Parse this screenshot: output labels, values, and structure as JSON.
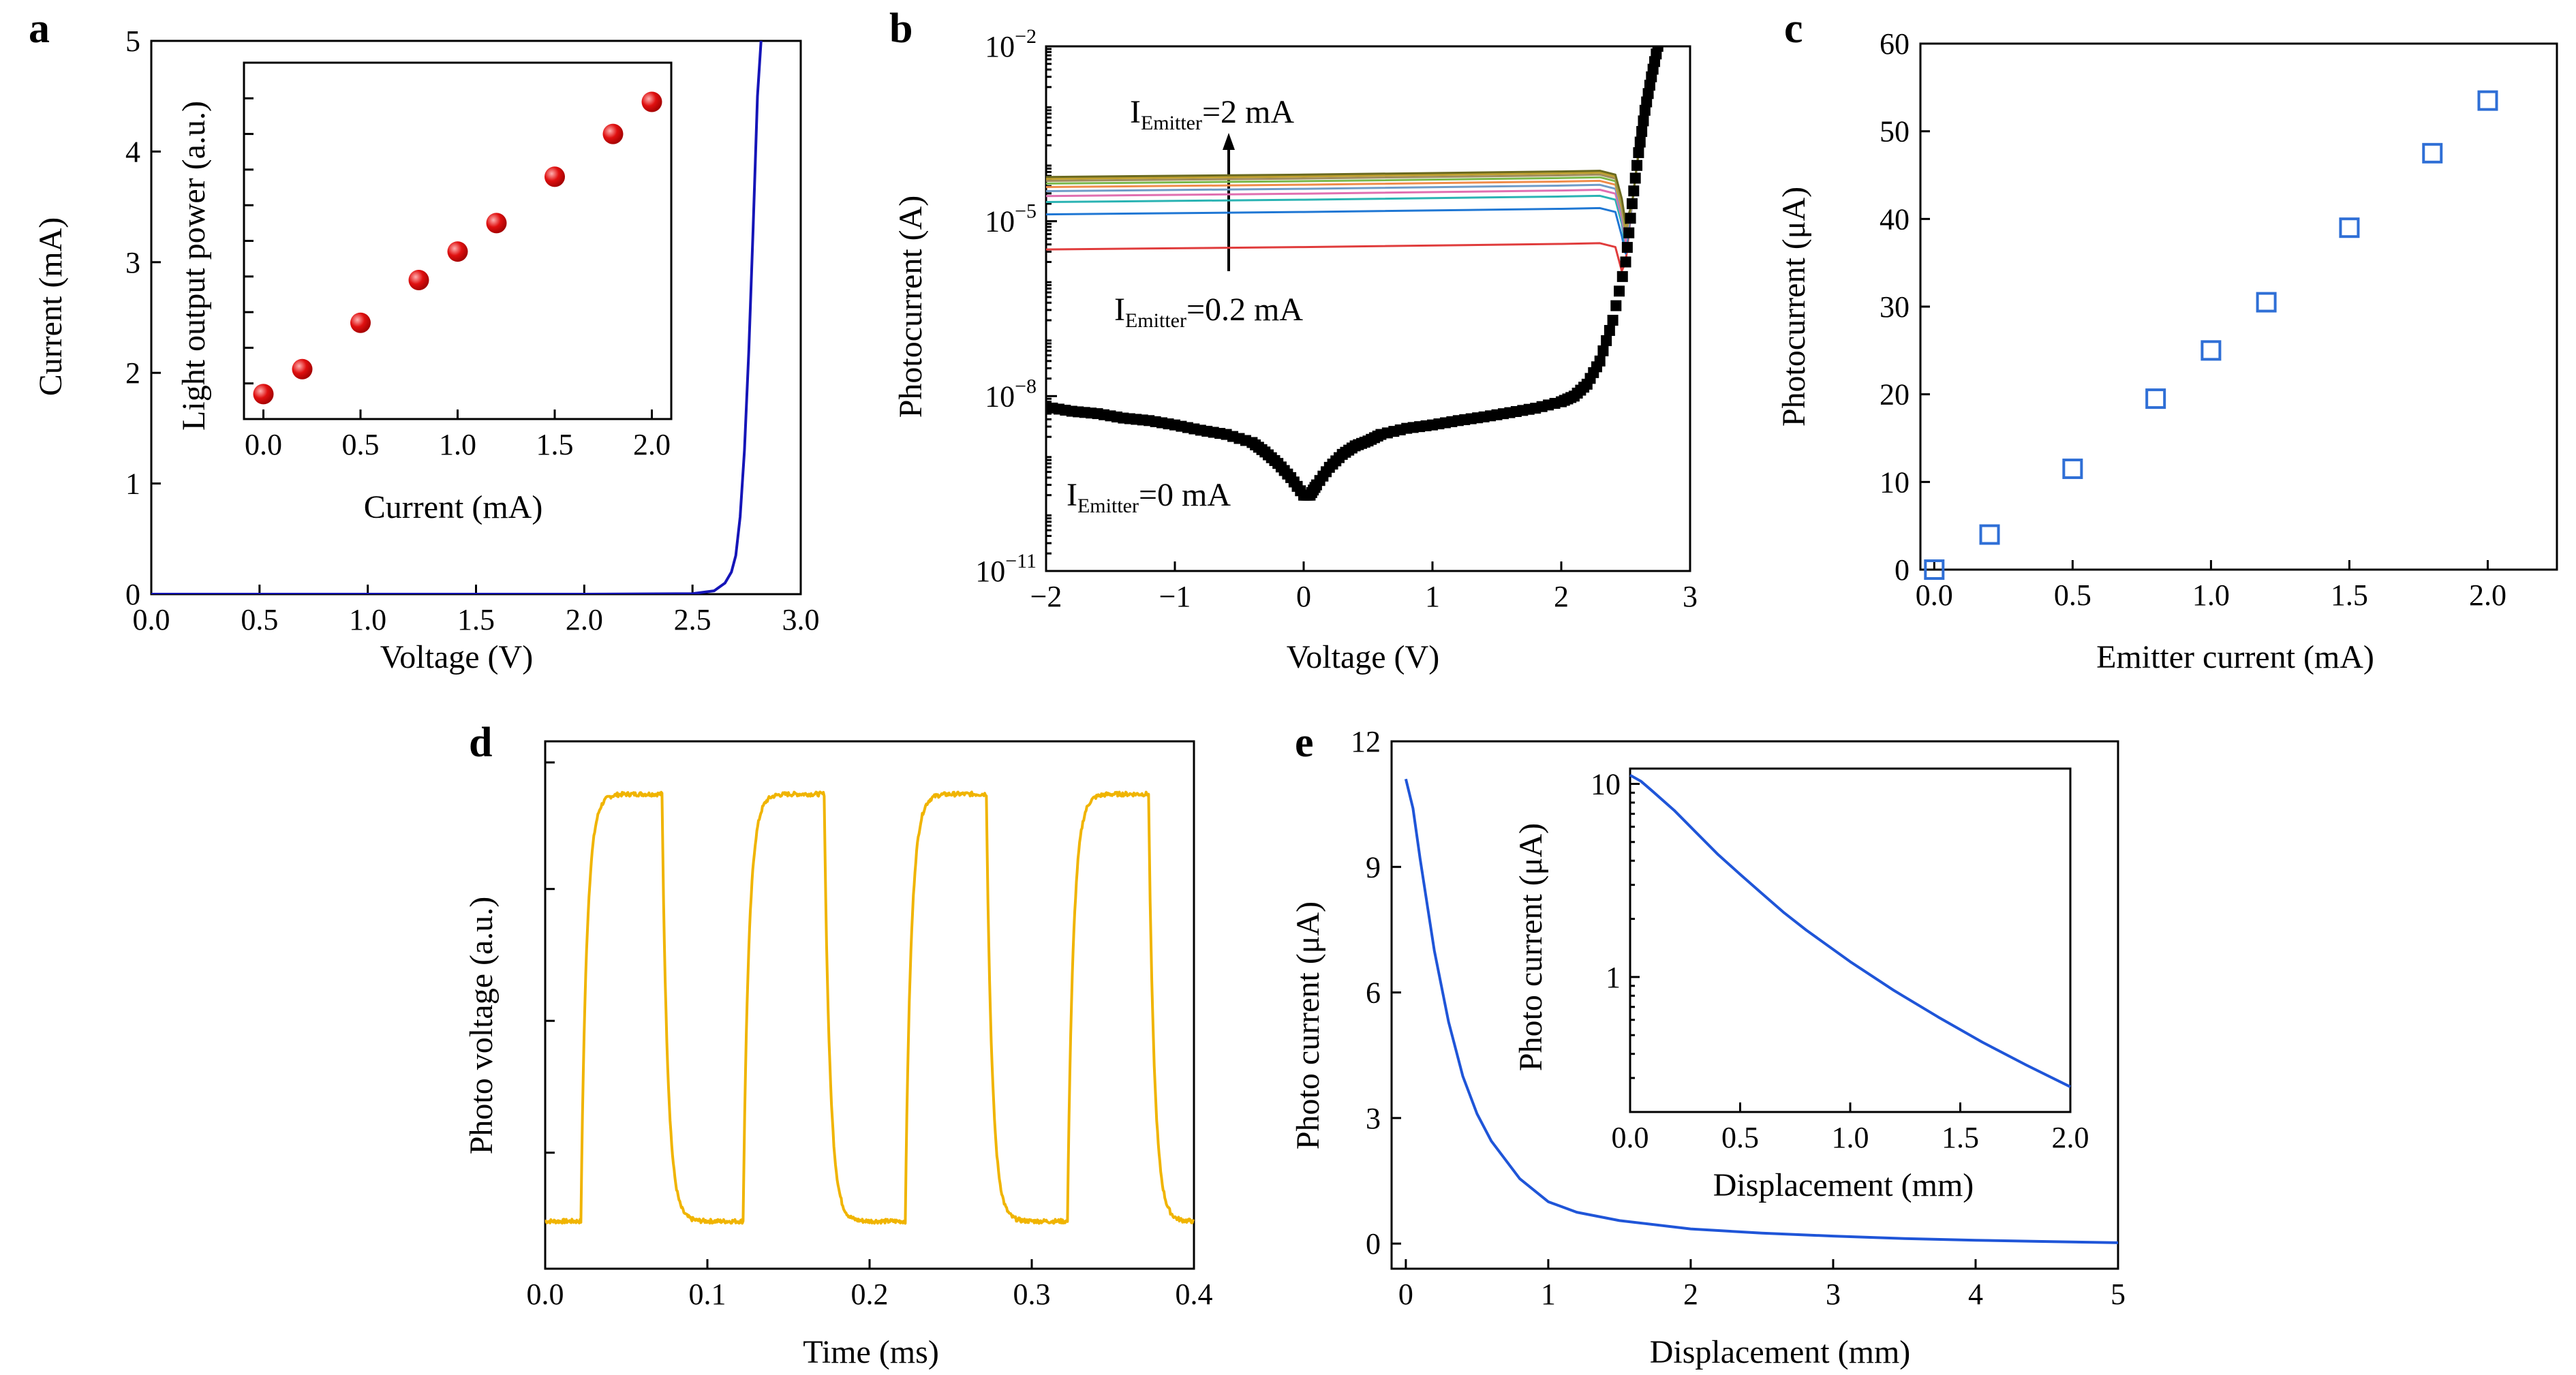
{
  "colors": {
    "a_curve": "#1515b8",
    "a_marker": "#e01010",
    "b_dark": "#000000",
    "b_curves": [
      "#e03c3c",
      "#1f77d4",
      "#2ab3b3",
      "#e06fb0",
      "#6f9cc8",
      "#f08c4a",
      "#7ab84a",
      "#a08c5c",
      "#c0a030",
      "#6a6a20"
    ],
    "c_marker": "#2f6fd6",
    "d_curve": "#f0b400",
    "e_curve": "#1f55d8"
  },
  "chart_data": [
    {
      "id": "a",
      "panel_label": "a",
      "type": "line",
      "xlabel": "Voltage (V)",
      "ylabel": "Current (mA)",
      "xlim": [
        0,
        3.0
      ],
      "ylim": [
        0,
        5
      ],
      "xticks": [
        "0.0",
        "0.5",
        "1.0",
        "1.5",
        "2.0",
        "2.5",
        "3.0"
      ],
      "yticks": [
        "0",
        "1",
        "2",
        "3",
        "4",
        "5"
      ],
      "series": [
        {
          "x": [
            0,
            0.5,
            1.0,
            1.5,
            2.0,
            2.5,
            2.6,
            2.65,
            2.68,
            2.7,
            2.72,
            2.74,
            2.76,
            2.78,
            2.8,
            2.82
          ],
          "y": [
            0,
            0,
            0,
            0,
            0,
            0.005,
            0.03,
            0.1,
            0.2,
            0.35,
            0.7,
            1.3,
            2.2,
            3.3,
            4.5,
            5.1
          ]
        }
      ],
      "inset": {
        "type": "scatter",
        "xlabel": "Current (mA)",
        "ylabel": "Light output power (a.u.)",
        "xlim": [
          -0.1,
          2.1
        ],
        "ylim": [
          0,
          1
        ],
        "xticks": [
          "0.0",
          "0.5",
          "1.0",
          "1.5",
          "2.0"
        ],
        "x": [
          0.0,
          0.2,
          0.5,
          0.8,
          1.0,
          1.2,
          1.5,
          1.8,
          2.0
        ],
        "y": [
          0.07,
          0.14,
          0.27,
          0.39,
          0.47,
          0.55,
          0.68,
          0.8,
          0.89
        ]
      }
    },
    {
      "id": "b",
      "panel_label": "b",
      "type": "line",
      "xlabel": "Voltage (V)",
      "ylabel": "Photocurrent (A)",
      "xlim": [
        -2,
        3
      ],
      "ylim": [
        1e-11,
        0.01
      ],
      "yscale": "log",
      "xticks": [
        "−2",
        "−1",
        "0",
        "1",
        "2",
        "3"
      ],
      "yticks": [
        "10",
        "10",
        "10",
        "10"
      ],
      "yticks_exp": [
        "−11",
        "−8",
        "−5",
        "−2"
      ],
      "annotations": [
        {
          "text": "I",
          "sub": "Emitter",
          "rest": "=2 mA"
        },
        {
          "text": "I",
          "sub": "Emitter",
          "rest": "=0.2 mA"
        },
        {
          "text": "I",
          "sub": "Emitter",
          "rest": "=0 mA"
        }
      ],
      "dark_series": {
        "x": [
          -2.0,
          -1.8,
          -1.6,
          -1.4,
          -1.2,
          -1.0,
          -0.8,
          -0.6,
          -0.4,
          -0.3,
          -0.2,
          -0.1,
          0.0,
          0.05,
          0.1,
          0.2,
          0.3,
          0.4,
          0.5,
          0.6,
          0.8,
          1.0,
          1.2,
          1.4,
          1.6,
          1.8,
          2.0,
          2.1,
          2.2,
          2.3,
          2.4,
          2.5,
          2.55,
          2.6,
          2.65,
          2.7,
          2.75
        ],
        "y": [
          6.5e-09,
          5.5e-09,
          5e-09,
          4.2e-09,
          3.8e-09,
          3.2e-09,
          2.6e-09,
          2.2e-09,
          1.6e-09,
          1.1e-09,
          7e-10,
          4e-10,
          2e-10,
          2e-10,
          3e-10,
          6e-10,
          1e-09,
          1.4e-09,
          1.7e-09,
          2.2e-09,
          2.8e-09,
          3.2e-09,
          3.8e-09,
          4.4e-09,
          5.2e-09,
          6.2e-09,
          8e-09,
          1e-08,
          1.6e-08,
          4e-08,
          2e-07,
          2e-06,
          2e-05,
          0.00015,
          0.0008,
          0.003,
          0.01
        ]
      },
      "photo_levels": [
        4e-06,
        1.6e-05,
        2.6e-05,
        3.3e-05,
        4e-05,
        4.7e-05,
        5.4e-05,
        6e-05,
        6.5e-05,
        7e-05
      ],
      "photo_x": [
        -2.0,
        0.0,
        2.0,
        2.3,
        2.42,
        2.47,
        2.5,
        2.55,
        2.6,
        2.7,
        2.75
      ]
    },
    {
      "id": "c",
      "panel_label": "c",
      "type": "scatter",
      "xlabel": "Emitter current (mA)",
      "ylabel": "Photocurrent (μA)",
      "xlim": [
        -0.05,
        2.25
      ],
      "ylim": [
        0,
        60
      ],
      "xticks": [
        "0.0",
        "0.5",
        "1.0",
        "1.5",
        "2.0"
      ],
      "yticks": [
        "0",
        "10",
        "20",
        "30",
        "40",
        "50",
        "60"
      ],
      "x": [
        0.0,
        0.2,
        0.5,
        0.8,
        1.0,
        1.2,
        1.5,
        1.8,
        2.0
      ],
      "y": [
        0,
        4,
        11.5,
        19.5,
        25,
        30.5,
        39,
        47.5,
        53.5
      ]
    },
    {
      "id": "d",
      "panel_label": "d",
      "type": "line",
      "xlabel": "Time (ms)",
      "ylabel": "Photo voltage (a.u.)",
      "xlim": [
        0,
        0.4
      ],
      "ylim": [
        0,
        1
      ],
      "xticks": [
        "0.0",
        "0.1",
        "0.2",
        "0.3",
        "0.4"
      ],
      "square_wave": {
        "period": 0.1,
        "rise_start": 0.022,
        "fall_start": 0.072,
        "low": 0.09,
        "high": 0.9
      }
    },
    {
      "id": "e",
      "panel_label": "e",
      "type": "line",
      "xlabel": "Displacement (mm)",
      "ylabel": "Photo current (μA)",
      "xlim": [
        -0.1,
        5
      ],
      "ylim": [
        -0.6,
        12
      ],
      "xticks": [
        "0",
        "1",
        "2",
        "3",
        "4",
        "5"
      ],
      "yticks": [
        "0",
        "3",
        "6",
        "9",
        "12"
      ],
      "x": [
        0,
        0.05,
        0.1,
        0.2,
        0.3,
        0.4,
        0.5,
        0.6,
        0.8,
        1.0,
        1.2,
        1.5,
        2.0,
        2.5,
        3.0,
        3.5,
        4.0,
        4.5,
        5.0
      ],
      "y": [
        11.1,
        10.4,
        9.2,
        7.0,
        5.3,
        4.0,
        3.1,
        2.45,
        1.55,
        1.0,
        0.75,
        0.55,
        0.35,
        0.25,
        0.18,
        0.12,
        0.08,
        0.05,
        0.02
      ],
      "inset": {
        "type": "line",
        "xlabel": "Displacement (mm)",
        "ylabel": "Photo current (μA)",
        "xlim": [
          0,
          2.0
        ],
        "ylim": [
          0.2,
          12
        ],
        "yscale": "log",
        "xticks": [
          "0.0",
          "0.5",
          "1.0",
          "1.5",
          "2.0"
        ],
        "yticks": [
          "1",
          "10"
        ],
        "x": [
          0,
          0.05,
          0.1,
          0.2,
          0.3,
          0.4,
          0.5,
          0.6,
          0.7,
          0.8,
          1.0,
          1.2,
          1.4,
          1.6,
          1.8,
          2.0
        ],
        "y": [
          11.1,
          10.3,
          9.2,
          7.3,
          5.6,
          4.3,
          3.4,
          2.7,
          2.15,
          1.75,
          1.2,
          0.85,
          0.62,
          0.46,
          0.35,
          0.27
        ]
      }
    }
  ]
}
